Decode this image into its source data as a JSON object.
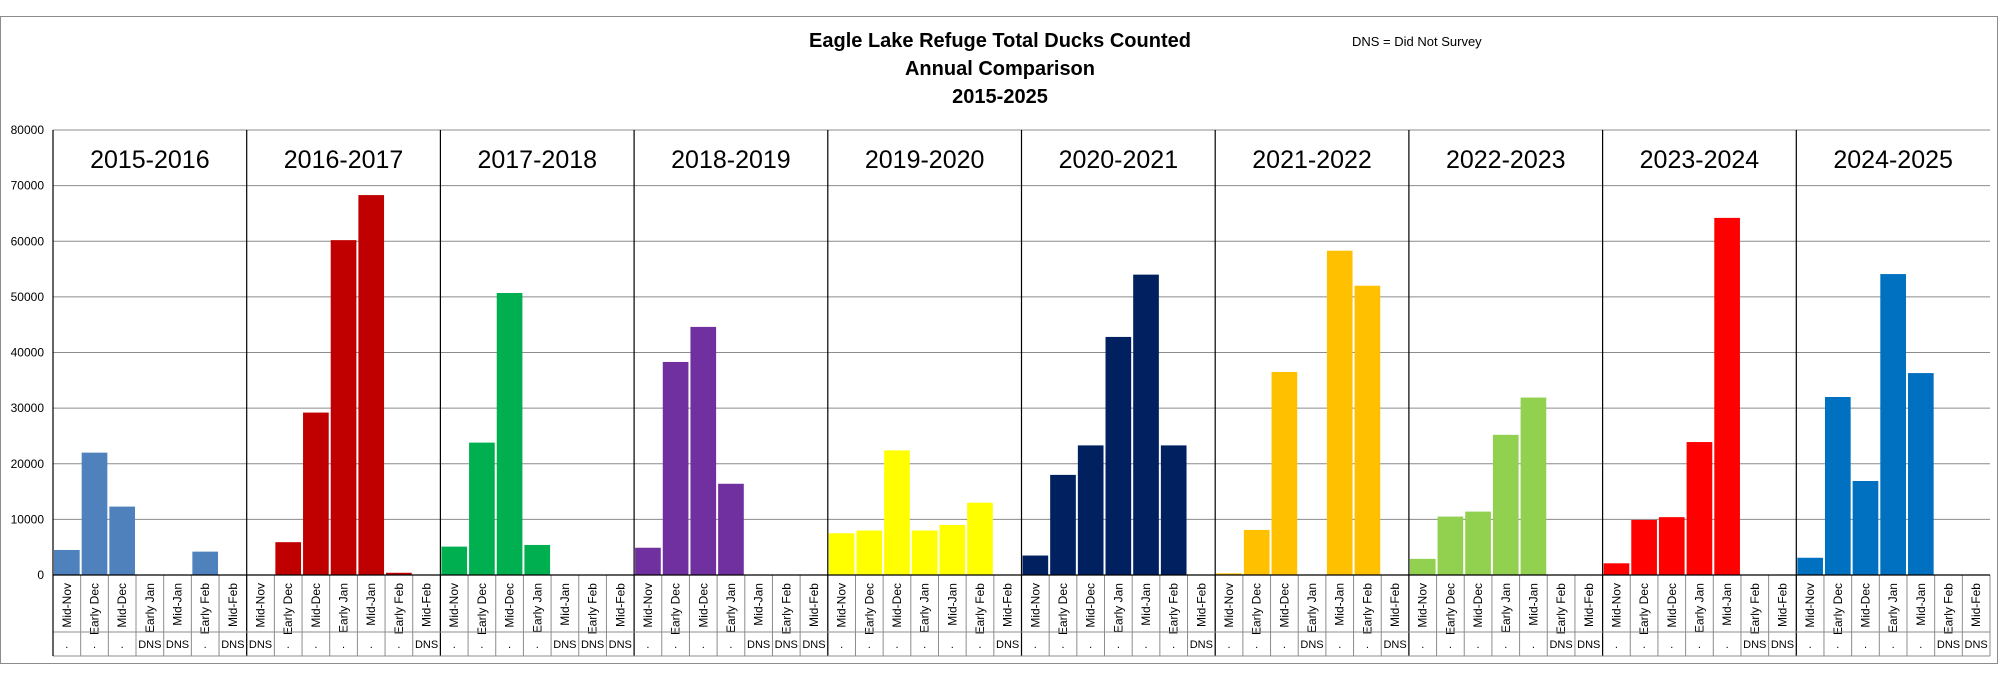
{
  "chart_data": {
    "type": "bar",
    "title": [
      "Eagle Lake Refuge Total Ducks Counted",
      "Annual Comparison",
      "2015-2025"
    ],
    "note": "DNS = Did Not Survey",
    "ylim": [
      0,
      80000
    ],
    "yticks": [
      "0",
      "10000",
      "20000",
      "30000",
      "40000",
      "50000",
      "60000",
      "70000",
      "80000"
    ],
    "grid": true,
    "seasons": [
      {
        "name": "2015-2016",
        "color": "#4f81bd",
        "categories": [
          "Mid-Nov",
          "Early Dec",
          "Mid-Dec",
          "Early Jan",
          "Mid-Jan",
          "Early Feb",
          "Mid-Feb"
        ],
        "values": [
          4500,
          22000,
          12300,
          null,
          null,
          4200,
          null
        ],
        "marks": [
          ".",
          ".",
          ".",
          "DNS",
          "DNS",
          ".",
          "DNS"
        ]
      },
      {
        "name": "2016-2017",
        "color": "#c00000",
        "categories": [
          "Mid-Nov",
          "Early Dec",
          "Mid-Dec",
          "Early Jan",
          "Mid-Jan",
          "Early Feb",
          "Mid-Feb"
        ],
        "values": [
          null,
          5900,
          29200,
          60200,
          68300,
          400,
          null
        ],
        "marks": [
          "DNS",
          ".",
          ".",
          ".",
          ".",
          ".",
          "DNS"
        ]
      },
      {
        "name": "2017-2018",
        "color": "#00b050",
        "categories": [
          "Mid-Nov",
          "Early Dec",
          "Mid-Dec",
          "Early Jan",
          "Mid-Jan",
          "Early Feb",
          "Mid-Feb"
        ],
        "values": [
          5100,
          23800,
          50700,
          5400,
          null,
          null,
          null
        ],
        "marks": [
          ".",
          ".",
          ".",
          ".",
          "DNS",
          "DNS",
          "DNS"
        ]
      },
      {
        "name": "2018-2019",
        "color": "#7030a0",
        "categories": [
          "Mid-Nov",
          "Early Dec",
          "Mid-Dec",
          "Early Jan",
          "Mid-Jan",
          "Early Feb",
          "Mid-Feb"
        ],
        "values": [
          4900,
          38300,
          44600,
          16400,
          null,
          null,
          null
        ],
        "marks": [
          ".",
          ".",
          ".",
          ".",
          "DNS",
          "DNS",
          "DNS"
        ]
      },
      {
        "name": "2019-2020",
        "color": "#ffff00",
        "categories": [
          "Mid-Nov",
          "Early Dec",
          "Mid-Dec",
          "Early Jan",
          "Mid-Jan",
          "Early Feb",
          "Mid-Feb"
        ],
        "values": [
          7500,
          8000,
          22400,
          8000,
          9000,
          13000,
          null
        ],
        "marks": [
          ".",
          ".",
          ".",
          ".",
          ".",
          ".",
          "DNS"
        ]
      },
      {
        "name": "2020-2021",
        "color": "#002060",
        "categories": [
          "Mid-Nov",
          "Early Dec",
          "Mid-Dec",
          "Early Jan",
          "Mid-Jan",
          "Early Feb",
          "Mid-Feb"
        ],
        "values": [
          3500,
          18000,
          23300,
          42800,
          54000,
          23300,
          null
        ],
        "marks": [
          ".",
          ".",
          ".",
          ".",
          ".",
          ".",
          "DNS"
        ]
      },
      {
        "name": "2021-2022",
        "color": "#ffc000",
        "categories": [
          "Mid-Nov",
          "Early Dec",
          "Mid-Dec",
          "Early Jan",
          "Mid-Jan",
          "Early Feb",
          "Mid-Feb"
        ],
        "values": [
          300,
          8100,
          36500,
          null,
          58300,
          52000,
          null
        ],
        "marks": [
          ".",
          ".",
          ".",
          "DNS",
          ".",
          ".",
          "DNS"
        ]
      },
      {
        "name": "2022-2023",
        "color": "#92d050",
        "categories": [
          "Mid-Nov",
          "Early Dec",
          "Mid-Dec",
          "Early Jan",
          "Mid-Jan",
          "Early Feb",
          "Mid-Feb"
        ],
        "values": [
          2900,
          10500,
          11400,
          25200,
          31900,
          null,
          null
        ],
        "marks": [
          ".",
          ".",
          ".",
          ".",
          ".",
          "DNS",
          "DNS"
        ]
      },
      {
        "name": "2023-2024",
        "color": "#ff0000",
        "categories": [
          "Mid-Nov",
          "Early Dec",
          "Mid-Dec",
          "Early Jan",
          "Mid-Jan",
          "Early Feb",
          "Mid-Feb"
        ],
        "values": [
          2100,
          9900,
          10400,
          23900,
          64200,
          null,
          null
        ],
        "marks": [
          ".",
          ".",
          ".",
          ".",
          ".",
          "DNS",
          "DNS"
        ]
      },
      {
        "name": "2024-2025",
        "color": "#0070c0",
        "categories": [
          "Mid-Nov",
          "Early Dec",
          "Mid-Dec",
          "Early Jan",
          "Mid-Jan",
          "Early Feb",
          "Mid-Feb"
        ],
        "values": [
          3100,
          32000,
          16900,
          54100,
          36300,
          null,
          null
        ],
        "marks": [
          ".",
          ".",
          ".",
          ".",
          ".",
          "DNS",
          "DNS"
        ]
      }
    ]
  }
}
